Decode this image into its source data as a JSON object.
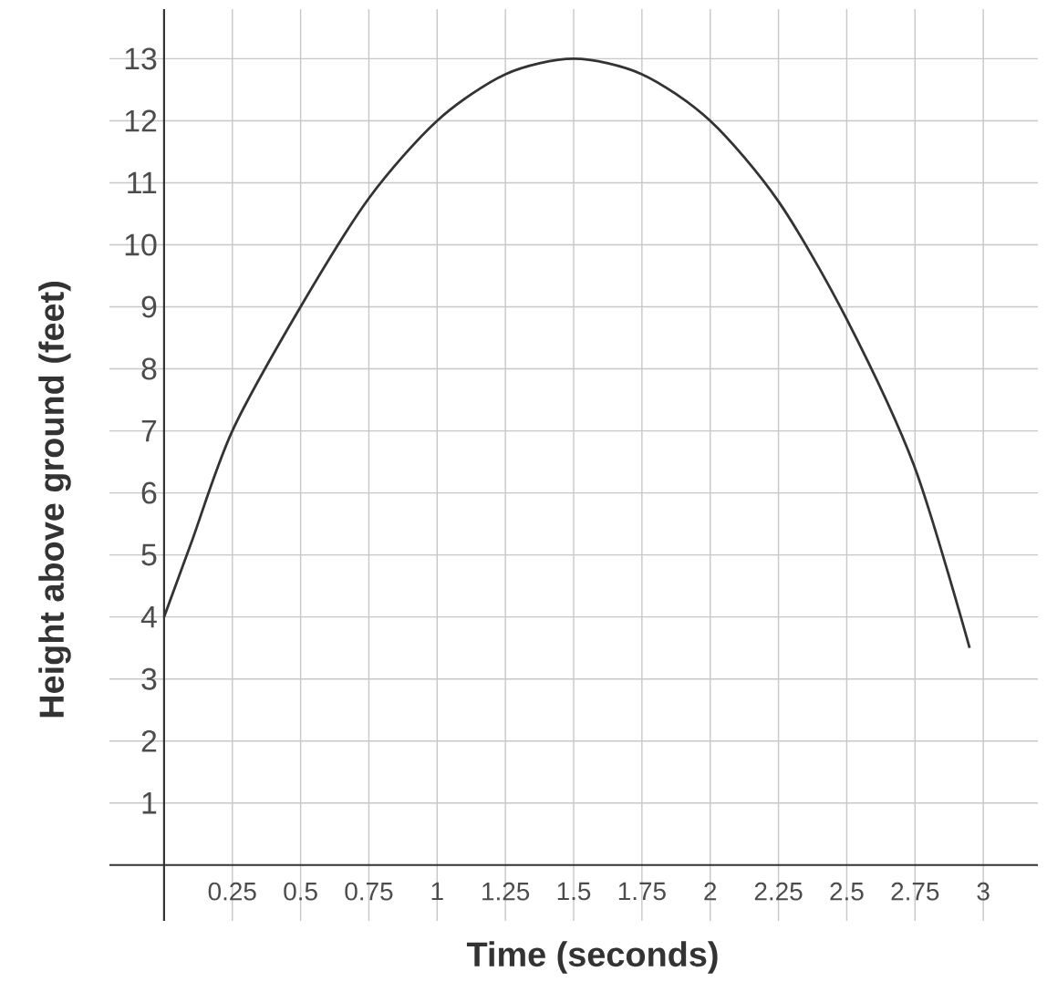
{
  "chart_data": {
    "type": "line",
    "xlabel": "Time (seconds)",
    "ylabel": "Height above ground (feet)",
    "x": [
      0,
      0.1,
      0.25,
      0.5,
      0.75,
      1,
      1.25,
      1.5,
      1.75,
      2,
      2.25,
      2.5,
      2.75,
      2.95
    ],
    "series": [
      {
        "color": "#333333",
        "values": [
          4,
          5.2,
          7,
          9,
          10.75,
          12,
          12.75,
          13,
          12.75,
          12,
          10.7,
          8.8,
          6.4,
          3.5
        ]
      }
    ],
    "xlim": [
      -0.2,
      3.2
    ],
    "ylim": [
      -0.9,
      13.8
    ],
    "xticks": [
      0.25,
      0.5,
      0.75,
      1,
      1.25,
      1.5,
      1.75,
      2,
      2.25,
      2.5,
      2.75,
      3
    ],
    "yticks": [
      1,
      2,
      3,
      4,
      5,
      6,
      7,
      8,
      9,
      10,
      11,
      12,
      13
    ],
    "grid": true,
    "marker": "none",
    "line_style": "solid"
  }
}
